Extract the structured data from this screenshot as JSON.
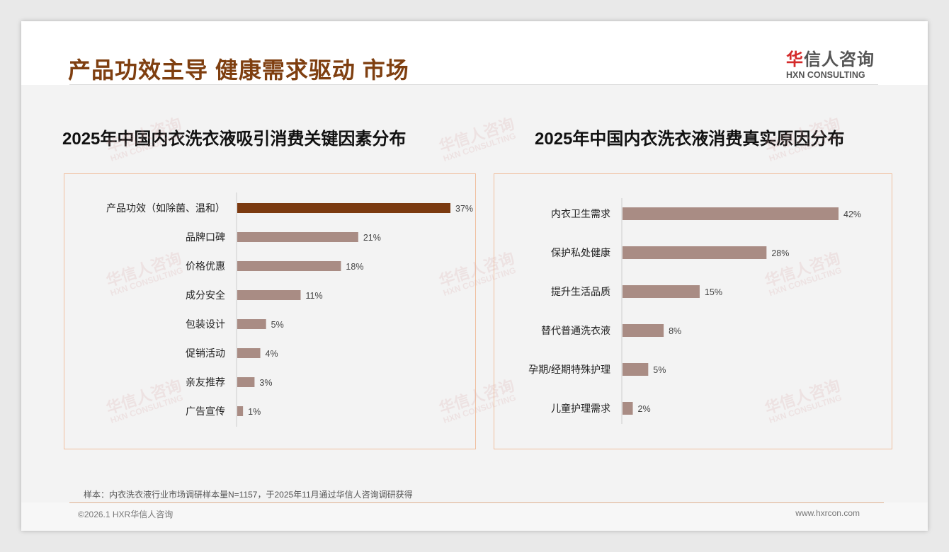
{
  "header": {
    "title": "产品功效主导 健康需求驱动 市场",
    "logo_cn": "华信人咨询",
    "logo_en": "HXN CONSULTING"
  },
  "colors": {
    "title": "#7f3f10",
    "highlight_bar": "#7b3a10",
    "bar": "#a98c84",
    "panel_border": "#f0c0a0"
  },
  "chart_data": [
    {
      "type": "bar",
      "orientation": "horizontal",
      "title": "2025年中国内衣洗衣液吸引消费关键因素分布",
      "categories": [
        "产品功效（如除菌、温和）",
        "品牌口碑",
        "价格优惠",
        "成分安全",
        "包装设计",
        "促销活动",
        "亲友推荐",
        "广告宣传"
      ],
      "values": [
        37,
        21,
        18,
        11,
        5,
        4,
        3,
        1
      ],
      "labels": [
        "37%",
        "21%",
        "18%",
        "11%",
        "5%",
        "4%",
        "3%",
        "1%"
      ],
      "highlight_index": 0,
      "unit": "%"
    },
    {
      "type": "bar",
      "orientation": "horizontal",
      "title": "2025年中国内衣洗衣液消费真实原因分布",
      "categories": [
        "内衣卫生需求",
        "保护私处健康",
        "提升生活品质",
        "替代普通洗衣液",
        "孕期/经期特殊护理",
        "儿童护理需求"
      ],
      "values": [
        42,
        28,
        15,
        8,
        5,
        2
      ],
      "labels": [
        "42%",
        "28%",
        "15%",
        "8%",
        "5%",
        "2%"
      ],
      "highlight_index": -1,
      "unit": "%"
    }
  ],
  "footer": {
    "note": "样本：内衣洗衣液行业市场调研样本量N=1157，于2025年11月通过华信人咨询调研获得",
    "copyright": "©2026.1 HXR华信人咨询",
    "url": "www.hxrcon.com"
  }
}
